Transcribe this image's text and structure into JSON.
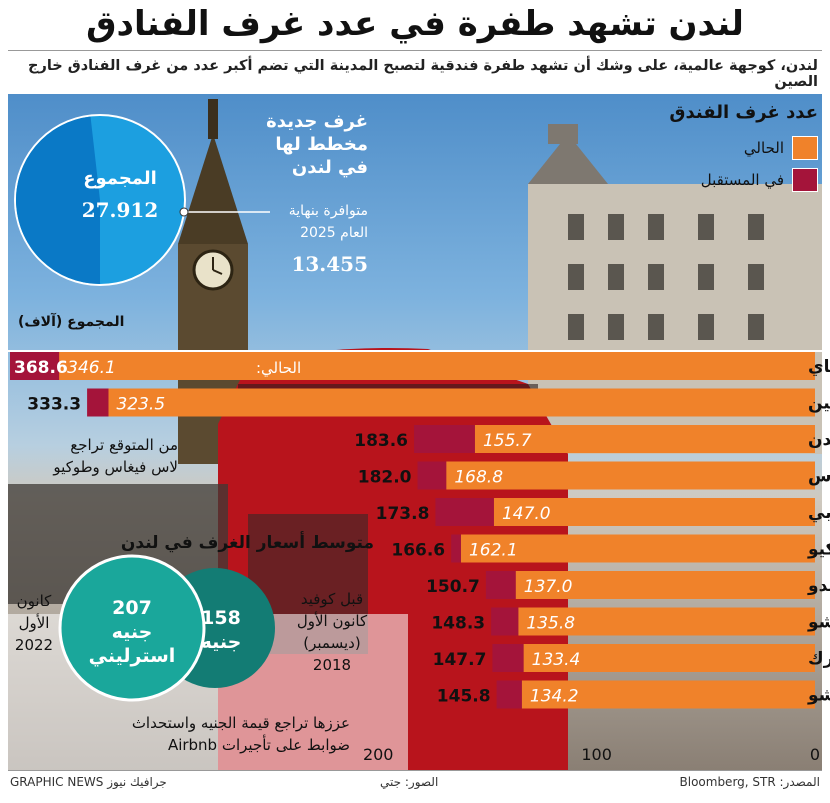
{
  "header": {
    "title": "لندن تشهد طفرة في عدد غرف الفنادق",
    "subtitle": "لندن، كوجهة عالمية، على وشك أن تشهد طفرة فندقية لتصبح المدينة التي تضم أكبر عدد من غرف الفنادق خارج الصين"
  },
  "legend": {
    "title": "عدد غرف الفندق",
    "current": {
      "label": "الحالي",
      "color": "#f0822a"
    },
    "future": {
      "label": "في المستقبل",
      "color": "#a4143a"
    }
  },
  "pie": {
    "total_label": "المجموع",
    "total_value": "27.912",
    "new_rooms_title": [
      "غرف جديدة",
      "مخطط لها",
      "في لندن"
    ],
    "availability": [
      "متوافرة بنهاية",
      "العام 2025"
    ],
    "availability_value": "13.455",
    "unit_note": "المجموع (آلاف)",
    "share_new": 0.482,
    "colors": {
      "existing": "#1c9fe0",
      "new": "#0a79c6"
    }
  },
  "chart_data": {
    "type": "bar",
    "orientation": "horizontal",
    "current_prefix": "الحالي:",
    "categories": [
      "شنغهاي",
      "بكين",
      "لندن",
      "لاس فيغاس",
      "دبي",
      "طوكيو",
      "أورلاندو",
      "هانغتشو",
      "نيويورك",
      "قوانغتشو"
    ],
    "series": [
      {
        "name": "الحالي",
        "values": [
          346.1,
          323.5,
          155.7,
          168.8,
          147.0,
          162.1,
          137.0,
          135.8,
          133.4,
          134.2
        ]
      },
      {
        "name": "في المستقبل",
        "values": [
          368.6,
          333.3,
          183.6,
          182.0,
          173.8,
          166.6,
          150.7,
          148.3,
          147.7,
          145.8
        ]
      }
    ],
    "current_labels": [
      "346.1",
      "323.5",
      "155.7",
      "168.8",
      "147.0",
      "162.1",
      "137.0",
      "135.8",
      "133.4",
      "134.2"
    ],
    "future_labels": [
      "368.6",
      "333.3",
      "183.6",
      "182.0",
      "173.8",
      "166.6",
      "150.7",
      "148.3",
      "147.7",
      "145.8"
    ],
    "xticks": [
      "0",
      "100",
      "200"
    ],
    "xlim": [
      0,
      368.6
    ],
    "axis_direction": "right-to-left"
  },
  "annotations": {
    "decline_note": [
      "من المتوقع تراجع",
      "لاس فيغاس وطوكيو"
    ]
  },
  "rates": {
    "title": "متوسط أسعار الغرف في لندن",
    "before": {
      "value": "158",
      "unit": "جنيه",
      "color": "#137c74"
    },
    "now": {
      "value": "207",
      "unit": [
        "جنيه",
        "استرليني"
      ],
      "color": "#1aa79b"
    },
    "before_label": [
      "قبل كوفيد",
      "كانون الأول",
      "(ديسمبر)",
      "2018"
    ],
    "now_label": [
      "كانون",
      "الأول",
      "2022"
    ],
    "reason": [
      "عززها تراجع قيمة الجنيه واستحداث",
      "ضوابط على تأجيرات Airbnb"
    ]
  },
  "footer": {
    "source": "المصدر: Bloomberg, STR",
    "photos": "الصور: جتي",
    "credit": "GRAPHIC NEWS جرافيك نيوز"
  }
}
